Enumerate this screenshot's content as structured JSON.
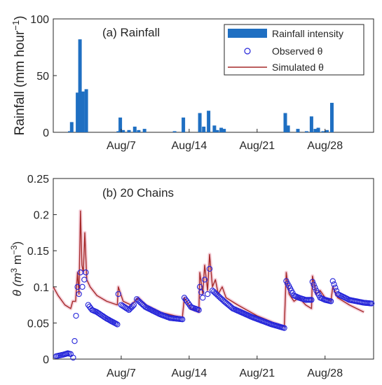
{
  "chart_data": [
    {
      "type": "bar",
      "panel_label": "(a) Rainfall",
      "ylabel": "Rainfall (mm hour",
      "ylabel_sup": "−1",
      "ylabel_close": ")",
      "ylim": [
        0,
        100
      ],
      "yticks": [
        0,
        50,
        100
      ],
      "xlim": [
        0,
        33
      ],
      "xticks": [
        {
          "x": 7,
          "label": "Aug/7"
        },
        {
          "x": 14,
          "label": "Aug/14"
        },
        {
          "x": 21,
          "label": "Aug/21"
        },
        {
          "x": 28,
          "label": "Aug/28"
        }
      ],
      "color": "#1f6fc2",
      "legend_position": "top-right",
      "legend": [
        {
          "label": "Rainfall intensity",
          "kind": "bar"
        },
        {
          "label": "Observed θ",
          "kind": "marker"
        },
        {
          "label": "Simulated θ",
          "kind": "line"
        }
      ],
      "bars": [
        [
          1.7,
          1
        ],
        [
          1.9,
          9
        ],
        [
          2.5,
          35
        ],
        [
          2.75,
          82
        ],
        [
          3.05,
          36
        ],
        [
          3.4,
          38
        ],
        [
          6.7,
          1
        ],
        [
          6.9,
          13
        ],
        [
          7.2,
          2
        ],
        [
          7.8,
          2
        ],
        [
          8.4,
          5
        ],
        [
          8.8,
          2
        ],
        [
          9.4,
          3
        ],
        [
          12.5,
          1
        ],
        [
          13.4,
          13
        ],
        [
          15.1,
          17
        ],
        [
          15.5,
          5
        ],
        [
          16.0,
          19
        ],
        [
          16.6,
          6
        ],
        [
          16.9,
          2
        ],
        [
          17.3,
          4
        ],
        [
          17.6,
          3
        ],
        [
          23.9,
          17
        ],
        [
          24.2,
          6
        ],
        [
          25.2,
          3
        ],
        [
          26.1,
          1
        ],
        [
          26.6,
          14
        ],
        [
          27.0,
          3
        ],
        [
          27.3,
          4
        ],
        [
          27.8,
          1
        ],
        [
          28.2,
          2
        ],
        [
          28.7,
          26
        ]
      ]
    },
    {
      "type": "line",
      "panel_label": "(b) 20 Chains",
      "ylabel": "θ (m",
      "ylabel_mid": " m",
      "ylabel_sup1": "3",
      "ylabel_sup2": "−3",
      "ylabel_close": ")",
      "ylim": [
        0,
        0.25
      ],
      "yticks": [
        "0",
        "0.05",
        "0.1",
        "0.15",
        "0.2",
        "0.25"
      ],
      "ytick_values": [
        0,
        0.05,
        0.1,
        0.15,
        0.2,
        0.25
      ],
      "xlim": [
        0,
        33
      ],
      "xticks": [
        {
          "x": 7,
          "label": "Aug/7"
        },
        {
          "x": 14,
          "label": "Aug/14"
        },
        {
          "x": 21,
          "label": "Aug/21"
        },
        {
          "x": 28,
          "label": "Aug/28"
        }
      ],
      "series": [
        {
          "name": "Simulated θ",
          "color": "#a52a2a",
          "points": [
            [
              0,
              0.1
            ],
            [
              0.5,
              0.088
            ],
            [
              1.2,
              0.075
            ],
            [
              1.8,
              0.07
            ],
            [
              2.0,
              0.08
            ],
            [
              2.3,
              0.08
            ],
            [
              2.5,
              0.12
            ],
            [
              2.65,
              0.09
            ],
            [
              2.8,
              0.205
            ],
            [
              2.95,
              0.13
            ],
            [
              3.1,
              0.12
            ],
            [
              3.25,
              0.175
            ],
            [
              3.45,
              0.11
            ],
            [
              3.8,
              0.1
            ],
            [
              4.5,
              0.088
            ],
            [
              5.5,
              0.08
            ],
            [
              6.6,
              0.075
            ],
            [
              6.7,
              0.1
            ],
            [
              7.2,
              0.08
            ],
            [
              8.0,
              0.075
            ],
            [
              8.4,
              0.08
            ],
            [
              8.8,
              0.085
            ],
            [
              9.5,
              0.075
            ],
            [
              11.0,
              0.065
            ],
            [
              12.5,
              0.06
            ],
            [
              13.3,
              0.058
            ],
            [
              13.5,
              0.085
            ],
            [
              14.2,
              0.07
            ],
            [
              15.0,
              0.065
            ],
            [
              15.1,
              0.12
            ],
            [
              15.4,
              0.09
            ],
            [
              15.6,
              0.13
            ],
            [
              15.9,
              0.095
            ],
            [
              16.1,
              0.145
            ],
            [
              16.4,
              0.1
            ],
            [
              16.7,
              0.11
            ],
            [
              17.0,
              0.09
            ],
            [
              17.4,
              0.1
            ],
            [
              17.8,
              0.085
            ],
            [
              19.0,
              0.075
            ],
            [
              21.0,
              0.06
            ],
            [
              22.8,
              0.05
            ],
            [
              23.8,
              0.045
            ],
            [
              24.0,
              0.12
            ],
            [
              24.3,
              0.09
            ],
            [
              24.8,
              0.08
            ],
            [
              25.3,
              0.085
            ],
            [
              26.0,
              0.075
            ],
            [
              26.6,
              0.07
            ],
            [
              26.7,
              0.115
            ],
            [
              27.1,
              0.09
            ],
            [
              27.5,
              0.095
            ],
            [
              28.0,
              0.085
            ],
            [
              28.6,
              0.08
            ],
            [
              28.8,
              0.1
            ],
            [
              29.3,
              0.085
            ],
            [
              30.5,
              0.075
            ],
            [
              32.0,
              0.065
            ]
          ]
        },
        {
          "name": "Observed θ",
          "color": "#2424d9",
          "points": [
            [
              0.3,
              0.004
            ],
            [
              1.0,
              0.006
            ],
            [
              1.5,
              0.008
            ],
            [
              1.8,
              0.007
            ],
            [
              2.05,
              0.002
            ],
            [
              2.2,
              0.025
            ],
            [
              2.35,
              0.06
            ],
            [
              2.5,
              0.1
            ],
            [
              2.65,
              0.09
            ],
            [
              2.8,
              0.12
            ],
            [
              3.0,
              0.1
            ],
            [
              3.2,
              0.11
            ],
            [
              3.35,
              0.12
            ],
            [
              3.6,
              0.075
            ],
            [
              4.0,
              0.068
            ],
            [
              4.5,
              0.065
            ],
            [
              5.5,
              0.056
            ],
            [
              6.6,
              0.048
            ],
            [
              6.7,
              0.09
            ],
            [
              7.0,
              0.075
            ],
            [
              7.8,
              0.068
            ],
            [
              8.3,
              0.075
            ],
            [
              8.6,
              0.083
            ],
            [
              9.0,
              0.078
            ],
            [
              9.5,
              0.072
            ],
            [
              11.0,
              0.062
            ],
            [
              12.0,
              0.057
            ],
            [
              13.3,
              0.055
            ],
            [
              13.5,
              0.085
            ],
            [
              14.2,
              0.072
            ],
            [
              15.0,
              0.068
            ],
            [
              15.1,
              0.1
            ],
            [
              15.4,
              0.085
            ],
            [
              15.6,
              0.11
            ],
            [
              15.9,
              0.09
            ],
            [
              16.1,
              0.125
            ],
            [
              16.4,
              0.095
            ],
            [
              16.8,
              0.09
            ],
            [
              17.2,
              0.085
            ],
            [
              17.6,
              0.08
            ],
            [
              18.5,
              0.07
            ],
            [
              19.5,
              0.064
            ],
            [
              20.5,
              0.058
            ],
            [
              21.5,
              0.053
            ],
            [
              22.5,
              0.048
            ],
            [
              23.8,
              0.043
            ],
            [
              24.0,
              0.108
            ],
            [
              24.4,
              0.098
            ],
            [
              24.8,
              0.088
            ],
            [
              25.3,
              0.085
            ],
            [
              26.0,
              0.082
            ],
            [
              26.6,
              0.082
            ],
            [
              26.7,
              0.107
            ],
            [
              27.1,
              0.095
            ],
            [
              27.5,
              0.085
            ],
            [
              28.0,
              0.082
            ],
            [
              28.6,
              0.08
            ],
            [
              28.8,
              0.108
            ],
            [
              29.3,
              0.09
            ],
            [
              30.5,
              0.082
            ],
            [
              32.0,
              0.078
            ],
            [
              32.8,
              0.077
            ]
          ]
        }
      ]
    }
  ]
}
